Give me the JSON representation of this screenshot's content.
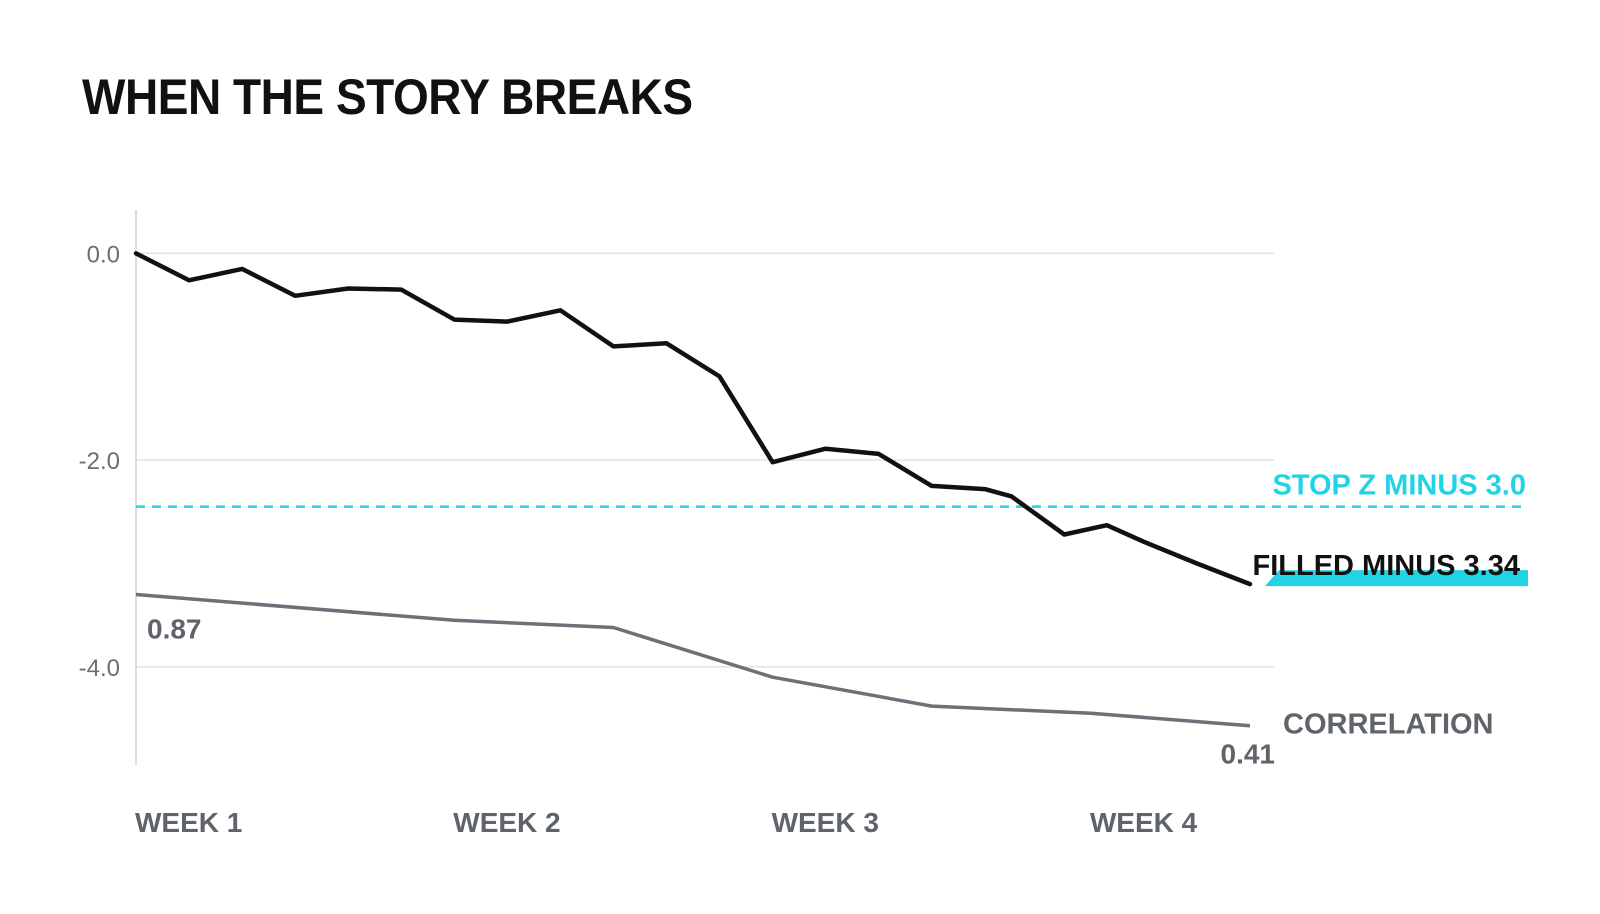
{
  "title": "WHEN THE STORY BREAKS",
  "colors": {
    "price_line": "#111111",
    "correlation_line": "#6b7079",
    "stop_line": "#22d3e6",
    "filled_band": "#22d3e6",
    "grid": "#e2e2e2",
    "axis": "#d0d0d0"
  },
  "chart_data": {
    "type": "line",
    "title": "WHEN THE STORY BREAKS",
    "xlabel": "",
    "ylabel": "",
    "x_tick_labels": [
      "WEEK 1",
      "WEEK 2",
      "WEEK 3",
      "WEEK 4"
    ],
    "y_ticks": [
      0.0,
      -2.0,
      -4.0
    ],
    "y_tick_labels": [
      "0.0",
      "-2.0",
      "-4.0"
    ],
    "ylim": [
      -4.95,
      0.42
    ],
    "xlim": [
      0,
      21.5
    ],
    "grid": true,
    "series": [
      {
        "x": [
          0,
          1,
          2,
          3,
          4,
          5,
          6,
          7,
          8,
          9,
          10,
          11,
          12,
          13,
          14,
          15,
          16,
          16.5,
          17.5,
          18.3,
          19,
          20,
          21
        ],
        "values": [
          0.0,
          -0.26,
          -0.15,
          -0.41,
          -0.34,
          -0.35,
          -0.64,
          -0.66,
          -0.55,
          -0.9,
          -0.87,
          -1.19,
          -2.02,
          -1.89,
          -1.94,
          -2.25,
          -2.28,
          -2.35,
          -2.72,
          -2.63,
          -2.79,
          -3.0,
          -3.2
        ]
      },
      {
        "x": [
          0,
          6,
          9,
          12,
          15,
          18,
          21
        ],
        "values": [
          -3.3,
          -3.55,
          -3.62,
          -4.1,
          -4.38,
          -4.45,
          -4.57
        ]
      }
    ],
    "reference_lines": [
      {
        "label": "STOP Z MINUS 3.0",
        "y": -2.45,
        "style": "dashed"
      }
    ],
    "annotations": {
      "filled_label": "FILLED MINUS 3.34",
      "correlation_label": "CORRELATION",
      "correlation_start_value": "0.87",
      "correlation_end_value": "0.41"
    }
  }
}
